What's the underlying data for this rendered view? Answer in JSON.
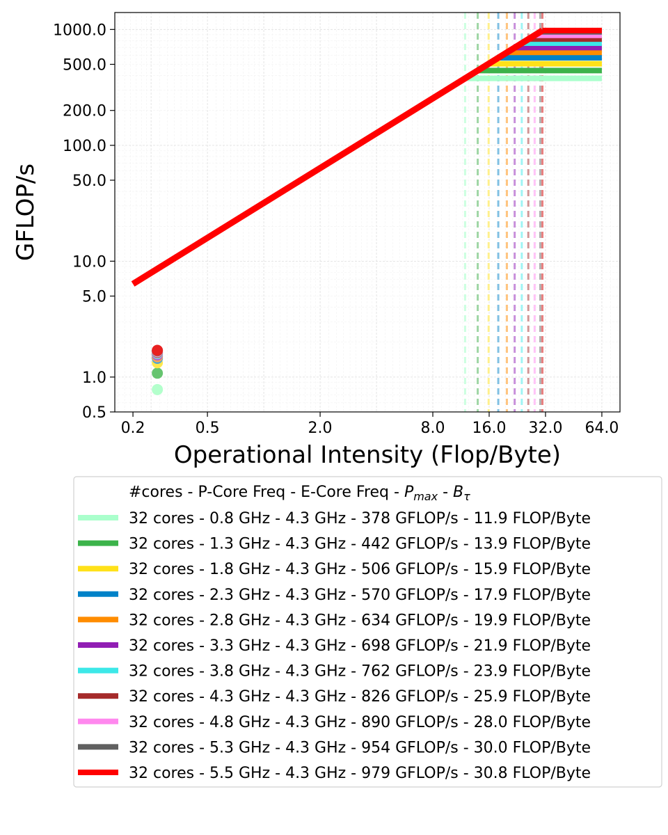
{
  "chart_data": {
    "type": "line",
    "title": "",
    "xlabel": "Operational Intensity (Flop/Byte)",
    "ylabel": "GFLOP/s",
    "xscale": "log2",
    "yscale": "log10",
    "xlim": [
      0.16,
      80
    ],
    "ylim": [
      0.5,
      1400
    ],
    "x_ticks": [
      0.2,
      0.5,
      2.0,
      8.0,
      16.0,
      32.0,
      64.0
    ],
    "x_tick_labels": [
      "0.2",
      "0.5",
      "2.0",
      "8.0",
      "16.0",
      "32.0",
      "64.0"
    ],
    "y_ticks": [
      0.5,
      1.0,
      5.0,
      10.0,
      50.0,
      100.0,
      200.0,
      500.0,
      1000.0
    ],
    "y_tick_labels": [
      "0.5",
      "1.0",
      "5.0",
      "10.0",
      "50.0",
      "100.0",
      "200.0",
      "500.0",
      "1000.0"
    ],
    "grid": true,
    "bandwidth_gflops_per_byte": 31.8,
    "roofline_x_start": 0.2,
    "roofline_x_end": 64.0,
    "measured_x": 0.27,
    "legend": {
      "placement": "below",
      "header": "#cores - P-Core Freq - E-Core Freq - ",
      "header_pmax": "P",
      "header_pmax_sub": "max",
      "header_sep": " - ",
      "header_btau": "B",
      "header_btau_sub": "τ"
    },
    "series": [
      {
        "label": "32 cores - 0.8 GHz - 4.3 GHz - 378 GFLOP/s - 11.9 FLOP/Byte",
        "pmax": 378,
        "ridge": 11.9,
        "point": 0.78,
        "color": "#aaffcc",
        "ridge_color": "#ccffe0",
        "marker_color": "#b3ffcc"
      },
      {
        "label": "32 cores - 1.3 GHz - 4.3 GHz - 442 GFLOP/s - 13.9 FLOP/Byte",
        "pmax": 442,
        "ridge": 13.9,
        "point": 1.08,
        "color": "#3cb34a",
        "ridge_color": "#9fd6a5",
        "marker_color": "#66c46f"
      },
      {
        "label": "32 cores - 1.8 GHz - 4.3 GHz - 506 GFLOP/s - 15.9 FLOP/Byte",
        "pmax": 506,
        "ridge": 15.9,
        "point": 1.33,
        "color": "#ffe119",
        "ridge_color": "#fff08c",
        "marker_color": "#ffe84d"
      },
      {
        "label": "32 cores - 2.3 GHz - 4.3 GHz - 570 GFLOP/s - 17.9 FLOP/Byte",
        "pmax": 570,
        "ridge": 17.9,
        "point": 1.45,
        "color": "#0082c8",
        "ridge_color": "#80c0e3",
        "marker_color": "#4da6d9"
      },
      {
        "label": "32 cores - 2.8 GHz - 4.3 GHz - 634 GFLOP/s - 19.9 FLOP/Byte",
        "pmax": 634,
        "ridge": 19.9,
        "point": 1.5,
        "color": "#ff8c00",
        "ridge_color": "#ffc580",
        "marker_color": "#ffa64d"
      },
      {
        "label": "32 cores - 3.3 GHz - 4.3 GHz - 698 GFLOP/s - 21.9 FLOP/Byte",
        "pmax": 698,
        "ridge": 21.9,
        "point": 1.55,
        "color": "#911eb4",
        "ridge_color": "#c88fda",
        "marker_color": "#b266cc"
      },
      {
        "label": "32 cores - 3.8 GHz - 4.3 GHz - 762 GFLOP/s - 23.9 FLOP/Byte",
        "pmax": 762,
        "ridge": 23.9,
        "point": 1.6,
        "color": "#3ce8e8",
        "ridge_color": "#9ff4f4",
        "marker_color": "#77eeee"
      },
      {
        "label": "32 cores - 4.3 GHz - 4.3 GHz - 826 GFLOP/s - 25.9 FLOP/Byte",
        "pmax": 826,
        "ridge": 25.9,
        "point": 1.63,
        "color": "#a52a2a",
        "ridge_color": "#d29595",
        "marker_color": "#b55a5a"
      },
      {
        "label": "32 cores - 4.8 GHz - 4.3 GHz - 890 GFLOP/s - 28.0 FLOP/Byte",
        "pmax": 890,
        "ridge": 28.0,
        "point": 1.66,
        "color": "#ff88ee",
        "ridge_color": "#ffc4f7",
        "marker_color": "#ffaaf3"
      },
      {
        "label": "32 cores - 5.3 GHz - 4.3 GHz - 954 GFLOP/s - 30.0 FLOP/Byte",
        "pmax": 954,
        "ridge": 30.0,
        "point": 1.68,
        "color": "#606060",
        "ridge_color": "#b0b0b0",
        "marker_color": "#808080"
      },
      {
        "label": "32 cores - 5.5 GHz - 4.3 GHz - 979 GFLOP/s - 30.8 FLOP/Byte",
        "pmax": 979,
        "ridge": 30.8,
        "point": 1.7,
        "color": "#ff0000",
        "ridge_color": "#e88080",
        "marker_color": "#e82020"
      }
    ]
  }
}
